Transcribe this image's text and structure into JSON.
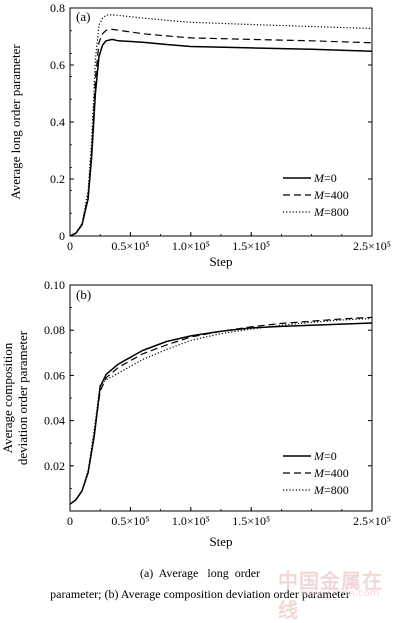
{
  "chart_data": [
    {
      "type": "line",
      "panel_label": "(a)",
      "ylabel": "Average long order parameter",
      "xlabel": "Step",
      "xlim": [
        0,
        250000
      ],
      "ylim": [
        0,
        0.8
      ],
      "yticks": [
        "0",
        "0.2",
        "0.4",
        "0.6",
        "0.8"
      ],
      "xticks": [
        "0",
        "0.5×10⁵",
        "1.0×10⁵",
        "1.5×10⁵",
        "2.5×10⁵"
      ],
      "legend_position": "lower-right",
      "series": [
        {
          "name": "M=0",
          "style": "solid",
          "x": [
            0,
            5000,
            10000,
            15000,
            18000,
            21000,
            24000,
            27000,
            30000,
            35000,
            40000,
            60000,
            80000,
            100000,
            150000,
            200000,
            250000
          ],
          "y": [
            0.0,
            0.01,
            0.04,
            0.13,
            0.28,
            0.5,
            0.63,
            0.67,
            0.685,
            0.69,
            0.685,
            0.68,
            0.672,
            0.665,
            0.66,
            0.655,
            0.648
          ]
        },
        {
          "name": "M=400",
          "style": "dashed",
          "x": [
            0,
            5000,
            10000,
            15000,
            18000,
            21000,
            24000,
            27000,
            30000,
            35000,
            40000,
            60000,
            80000,
            100000,
            150000,
            200000,
            250000
          ],
          "y": [
            0.0,
            0.01,
            0.04,
            0.14,
            0.3,
            0.55,
            0.68,
            0.71,
            0.722,
            0.725,
            0.722,
            0.71,
            0.702,
            0.695,
            0.69,
            0.685,
            0.678
          ]
        },
        {
          "name": "M=800",
          "style": "dotted",
          "x": [
            0,
            5000,
            10000,
            15000,
            18000,
            21000,
            24000,
            27000,
            30000,
            35000,
            40000,
            60000,
            80000,
            100000,
            150000,
            200000,
            250000
          ],
          "y": [
            0.0,
            0.012,
            0.045,
            0.16,
            0.34,
            0.62,
            0.74,
            0.765,
            0.775,
            0.776,
            0.774,
            0.765,
            0.757,
            0.75,
            0.742,
            0.735,
            0.728
          ]
        }
      ]
    },
    {
      "type": "line",
      "panel_label": "(b)",
      "ylabel": "Average composition deviation order parameter",
      "ylabel_lines": [
        "Average composition",
        "deviation order parameter"
      ],
      "xlabel": "Step",
      "xlim": [
        0,
        250000
      ],
      "ylim": [
        0,
        0.1
      ],
      "yticks": [
        "0.02",
        "0.04",
        "0.06",
        "0.08",
        "0.10"
      ],
      "xticks": [
        "0",
        "0.5×10⁵",
        "1.0×10⁵",
        "1.5×10⁵",
        "2.5×10⁵"
      ],
      "legend_position": "lower-right",
      "series": [
        {
          "name": "M=0",
          "style": "solid",
          "x": [
            0,
            5000,
            10000,
            15000,
            20000,
            25000,
            30000,
            40000,
            60000,
            80000,
            100000,
            125000,
            150000,
            175000,
            200000,
            225000,
            250000
          ],
          "y": [
            0.003,
            0.005,
            0.009,
            0.017,
            0.033,
            0.055,
            0.0605,
            0.065,
            0.071,
            0.075,
            0.0775,
            0.0795,
            0.081,
            0.0817,
            0.0822,
            0.0827,
            0.0832
          ]
        },
        {
          "name": "M=400",
          "style": "dashed",
          "x": [
            0,
            5000,
            10000,
            15000,
            20000,
            25000,
            30000,
            40000,
            60000,
            80000,
            100000,
            125000,
            150000,
            175000,
            200000,
            225000,
            250000
          ],
          "y": [
            0.003,
            0.005,
            0.009,
            0.017,
            0.034,
            0.053,
            0.059,
            0.0635,
            0.0695,
            0.0735,
            0.077,
            0.0795,
            0.0815,
            0.083,
            0.084,
            0.085,
            0.0857
          ]
        },
        {
          "name": "M=800",
          "style": "dotted",
          "x": [
            0,
            5000,
            10000,
            15000,
            20000,
            25000,
            30000,
            40000,
            60000,
            80000,
            100000,
            125000,
            150000,
            175000,
            200000,
            225000,
            250000
          ],
          "y": [
            0.003,
            0.005,
            0.009,
            0.018,
            0.036,
            0.056,
            0.058,
            0.061,
            0.067,
            0.0715,
            0.0755,
            0.0785,
            0.0805,
            0.0822,
            0.0835,
            0.0845,
            0.0852
          ]
        }
      ]
    }
  ],
  "caption": {
    "line1": "(a)  Average   long  order",
    "line2": "parameter; (b) Average composition deviation order parameter"
  }
}
